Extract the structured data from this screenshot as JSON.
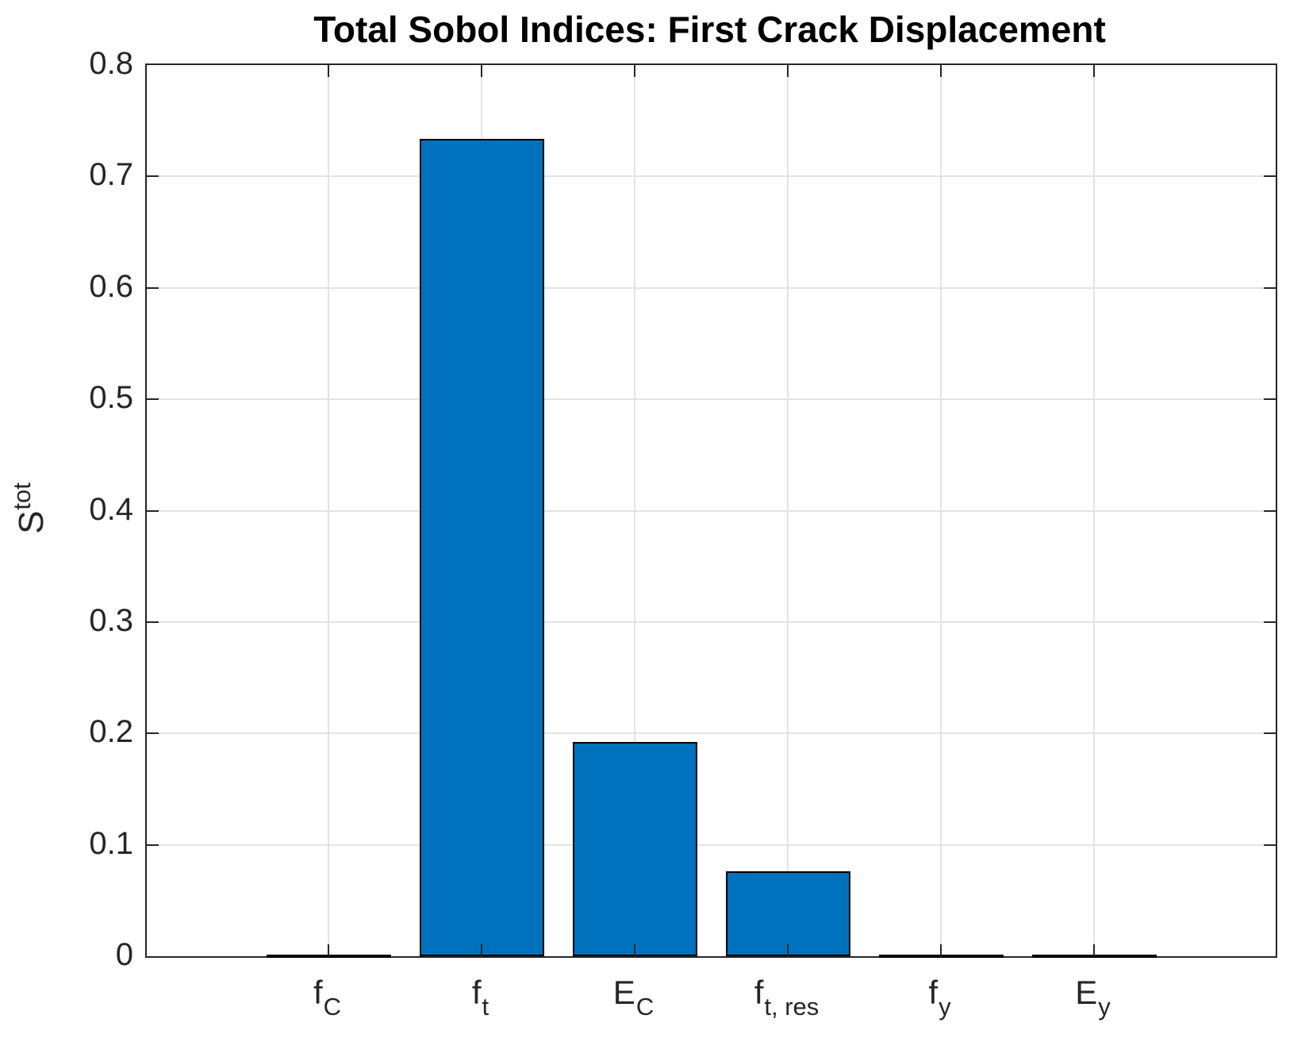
{
  "chart_data": {
    "type": "bar",
    "title": "Total Sobol Indices: First Crack Displacement",
    "ylabel": {
      "base": "S",
      "sup": "tot"
    },
    "xlabel": "",
    "categories": [
      {
        "base": "f",
        "sub": "C"
      },
      {
        "base": "f",
        "sub": "t"
      },
      {
        "base": "E",
        "sub": "C"
      },
      {
        "base": "f",
        "sub": "t, res"
      },
      {
        "base": "f",
        "sub": "y"
      },
      {
        "base": "E",
        "sub": "y"
      }
    ],
    "values": [
      0.001,
      0.734,
      0.192,
      0.076,
      0.001,
      0.001
    ],
    "ylim": [
      0,
      0.8
    ],
    "ytick_step": 0.1,
    "ytick_labels": [
      "0",
      "0.1",
      "0.2",
      "0.3",
      "0.4",
      "0.5",
      "0.6",
      "0.7",
      "0.8"
    ],
    "grid": true,
    "legend": null,
    "bar_color": "#0072BD",
    "bar_edge_color": "#000000",
    "axis_color": "#262626",
    "grid_color": "#e3e3e3",
    "title_color": "#000000"
  }
}
